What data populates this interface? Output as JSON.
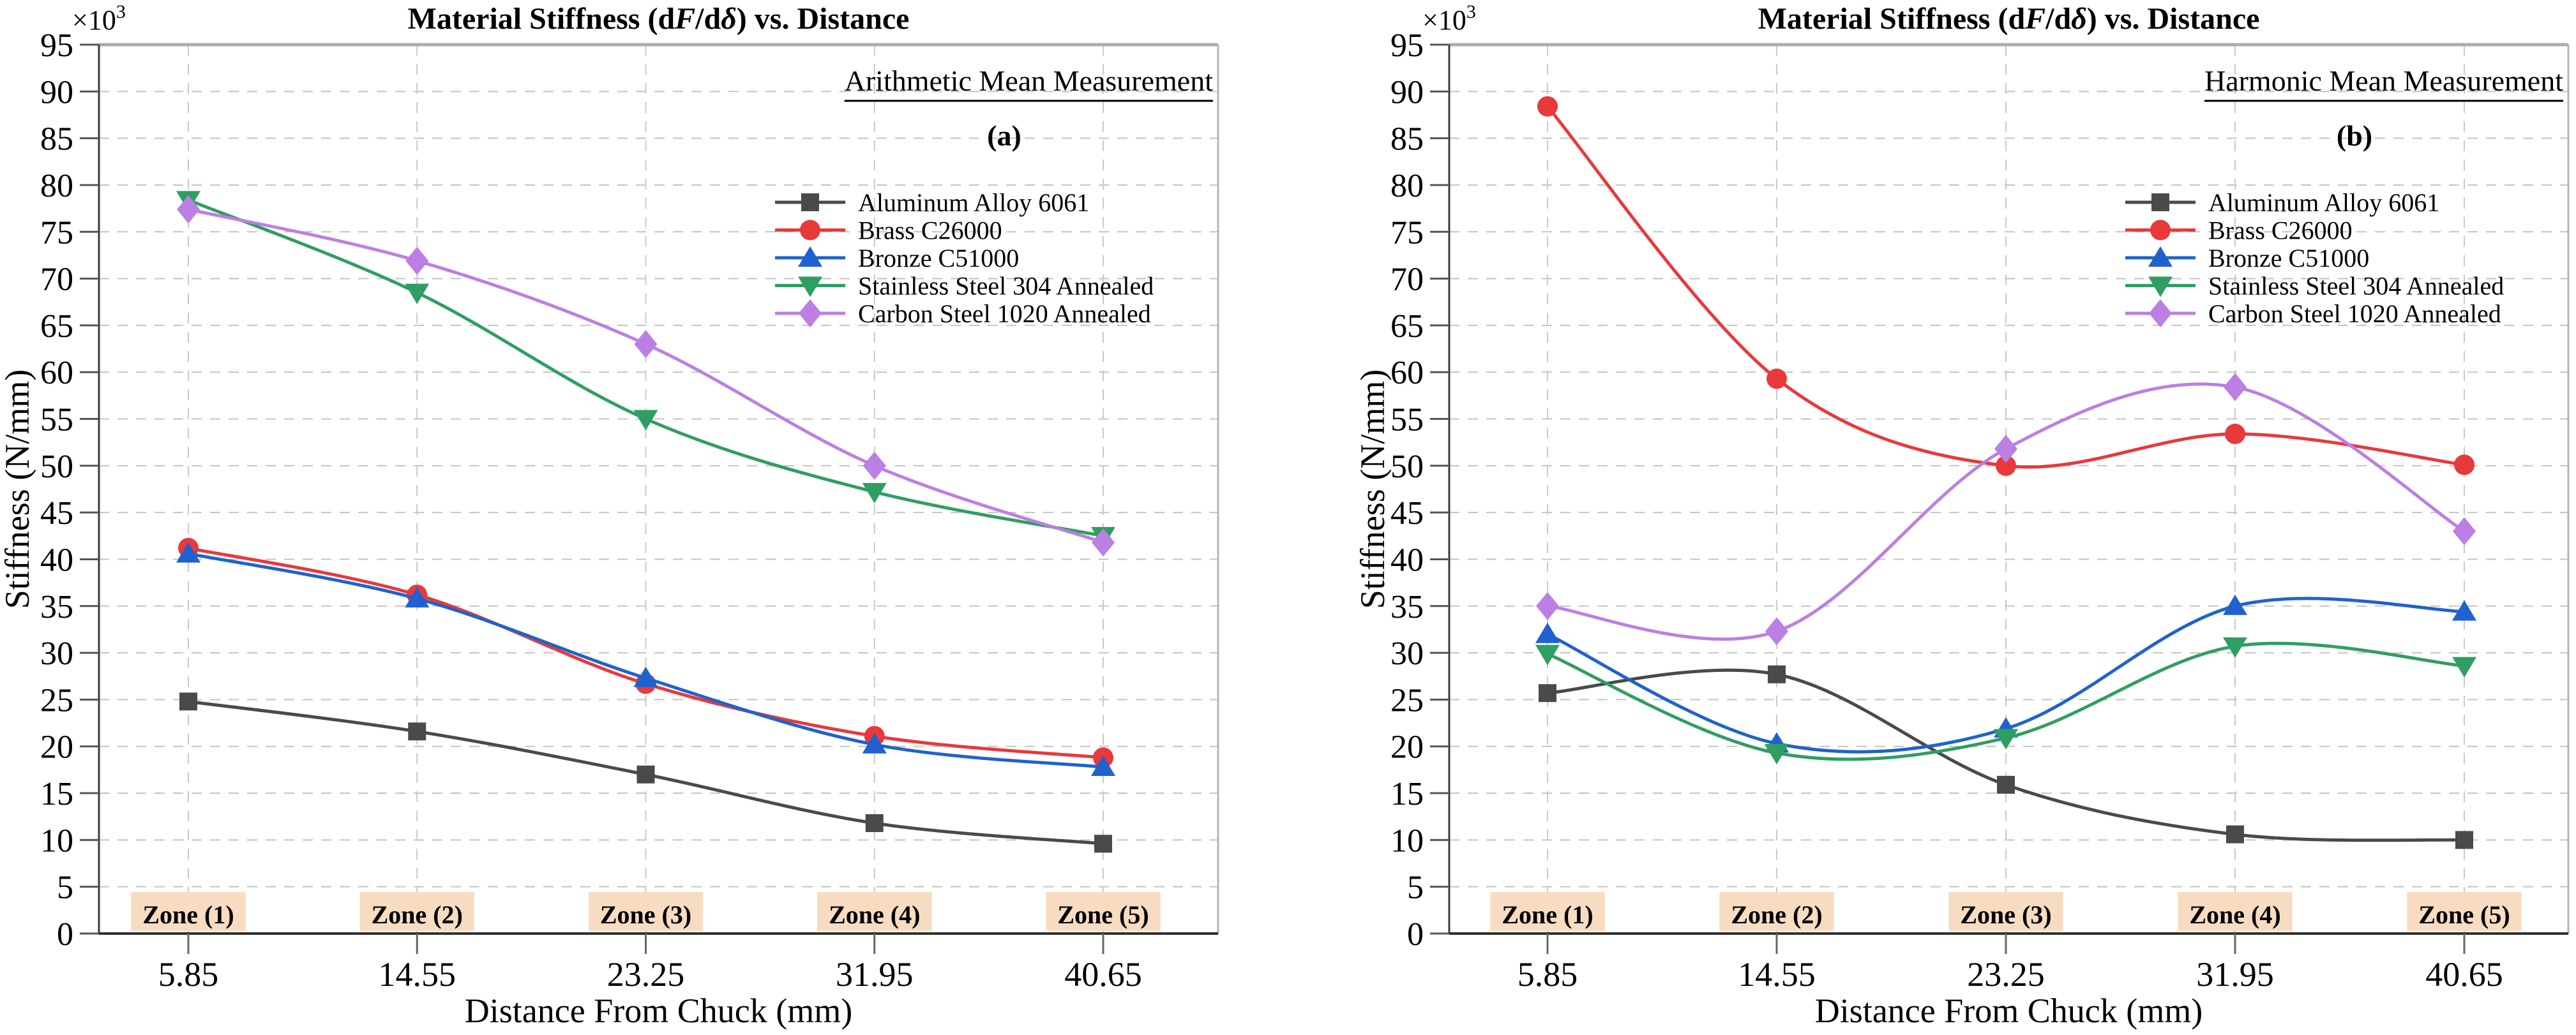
{
  "page": {
    "background": "#ffffff"
  },
  "chart_data": [
    {
      "type": "line",
      "panel_label": "(a)",
      "title": "Material Stiffness (dF/dδ) vs. Distance",
      "title_parts": [
        {
          "text": "Material Stiffness (d",
          "italic": false
        },
        {
          "text": "F",
          "italic": true
        },
        {
          "text": "/d",
          "italic": false
        },
        {
          "text": "δ",
          "italic": true
        },
        {
          "text": ") vs. Distance",
          "italic": false
        }
      ],
      "subtitle": "Arithmetic Mean Measurement",
      "xlabel": "Distance From Chuck (mm)",
      "ylabel": "Stiffness (N/mm)",
      "y_axis_multiplier": "×10",
      "y_axis_multiplier_exp": "3",
      "ylim": [
        0,
        95
      ],
      "ytick_step": 5,
      "y_tick_labels": [
        "0",
        "5",
        "10",
        "15",
        "20",
        "25",
        "30",
        "35",
        "40",
        "45",
        "50",
        "55",
        "60",
        "65",
        "70",
        "75",
        "80",
        "85",
        "90",
        "95"
      ],
      "x_tick_labels": [
        "5.85",
        "14.55",
        "23.25",
        "31.95",
        "40.65"
      ],
      "zone_labels": [
        "Zone (1)",
        "Zone (2)",
        "Zone (3)",
        "Zone (4)",
        "Zone (5)"
      ],
      "zone_label_bg": "#f8dcc1",
      "grid": true,
      "legend_position": "upper-right-inside",
      "units_note": "values are ×10³ N/mm",
      "series": [
        {
          "name": "Aluminum Alloy 6061",
          "marker": "square",
          "color": "#4a4a4a",
          "values": [
            24.8,
            21.6,
            17.0,
            11.8,
            9.6
          ]
        },
        {
          "name": "Brass C26000",
          "marker": "circle",
          "color": "#e8393b",
          "values": [
            41.2,
            36.2,
            26.7,
            21.1,
            18.8
          ]
        },
        {
          "name": "Bronze C51000",
          "marker": "triangle-up",
          "color": "#1f62cf",
          "values": [
            40.6,
            35.8,
            27.3,
            20.2,
            17.8
          ]
        },
        {
          "name": "Stainless Steel 304 Annealed",
          "marker": "triangle-down",
          "color": "#2f9e62",
          "values": [
            78.4,
            68.5,
            55.0,
            47.2,
            42.5
          ]
        },
        {
          "name": "Carbon Steel 1020 Annealed",
          "marker": "diamond",
          "color": "#bc7fe3",
          "values": [
            77.4,
            71.9,
            63.0,
            50.0,
            41.8
          ]
        }
      ]
    },
    {
      "type": "line",
      "panel_label": "(b)",
      "title": "Material Stiffness (dF/dδ) vs. Distance",
      "title_parts": [
        {
          "text": "Material Stiffness (d",
          "italic": false
        },
        {
          "text": "F",
          "italic": true
        },
        {
          "text": "/d",
          "italic": false
        },
        {
          "text": "δ",
          "italic": true
        },
        {
          "text": ") vs. Distance",
          "italic": false
        }
      ],
      "subtitle": "Harmonic Mean Measurement",
      "xlabel": "Distance From Chuck (mm)",
      "ylabel": "Stiffness (N/mm)",
      "y_axis_multiplier": "×10",
      "y_axis_multiplier_exp": "3",
      "ylim": [
        0,
        95
      ],
      "ytick_step": 5,
      "y_tick_labels": [
        "0",
        "5",
        "10",
        "15",
        "20",
        "25",
        "30",
        "35",
        "40",
        "45",
        "50",
        "55",
        "60",
        "65",
        "70",
        "75",
        "80",
        "85",
        "90",
        "95"
      ],
      "x_tick_labels": [
        "5.85",
        "14.55",
        "23.25",
        "31.95",
        "40.65"
      ],
      "zone_labels": [
        "Zone (1)",
        "Zone (2)",
        "Zone (3)",
        "Zone (4)",
        "Zone (5)"
      ],
      "zone_label_bg": "#f8dcc1",
      "grid": true,
      "legend_position": "upper-right-inside",
      "units_note": "values are ×10³ N/mm",
      "series": [
        {
          "name": "Aluminum Alloy 6061",
          "marker": "square",
          "color": "#4a4a4a",
          "values": [
            25.7,
            27.7,
            15.9,
            10.6,
            10.0
          ]
        },
        {
          "name": "Brass C26000",
          "marker": "circle",
          "color": "#e8393b",
          "values": [
            88.4,
            59.3,
            50.0,
            53.4,
            50.1
          ]
        },
        {
          "name": "Bronze C51000",
          "marker": "triangle-up",
          "color": "#1f62cf",
          "values": [
            32.0,
            20.3,
            21.9,
            35.0,
            34.4
          ]
        },
        {
          "name": "Stainless Steel 304 Annealed",
          "marker": "triangle-down",
          "color": "#2f9e62",
          "values": [
            29.9,
            19.3,
            20.9,
            30.7,
            28.6
          ]
        },
        {
          "name": "Carbon Steel 1020 Annealed",
          "marker": "diamond",
          "color": "#bc7fe3",
          "values": [
            35.0,
            32.3,
            51.8,
            58.4,
            43.0
          ]
        }
      ]
    }
  ]
}
